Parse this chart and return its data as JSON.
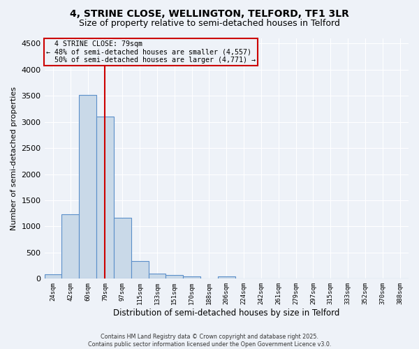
{
  "title_line1": "4, STRINE CLOSE, WELLINGTON, TELFORD, TF1 3LR",
  "title_line2": "Size of property relative to semi-detached houses in Telford",
  "xlabel": "Distribution of semi-detached houses by size in Telford",
  "ylabel": "Number of semi-detached properties",
  "property_label": "4 STRINE CLOSE: 79sqm",
  "pct_smaller": 48,
  "pct_smaller_count": 4557,
  "pct_larger": 50,
  "pct_larger_count": 4771,
  "bin_labels": [
    "24sqm",
    "42sqm",
    "60sqm",
    "79sqm",
    "97sqm",
    "115sqm",
    "133sqm",
    "151sqm",
    "170sqm",
    "188sqm",
    "206sqm",
    "224sqm",
    "242sqm",
    "261sqm",
    "279sqm",
    "297sqm",
    "315sqm",
    "333sqm",
    "352sqm",
    "370sqm",
    "388sqm"
  ],
  "bar_heights": [
    80,
    1230,
    3520,
    3100,
    1170,
    340,
    100,
    70,
    50,
    0,
    50,
    0,
    0,
    0,
    0,
    0,
    0,
    0,
    0,
    0,
    0
  ],
  "bar_color": "#c9d9e8",
  "bar_edge_color": "#5b8fc9",
  "red_line_index": 3,
  "red_line_color": "#cc0000",
  "annotation_box_edge_color": "#cc0000",
  "background_color": "#eef2f8",
  "grid_color": "#ffffff",
  "ylim": [
    0,
    4600
  ],
  "yticks": [
    0,
    500,
    1000,
    1500,
    2000,
    2500,
    3000,
    3500,
    4000,
    4500
  ],
  "footer_line1": "Contains HM Land Registry data © Crown copyright and database right 2025.",
  "footer_line2": "Contains public sector information licensed under the Open Government Licence v3.0."
}
